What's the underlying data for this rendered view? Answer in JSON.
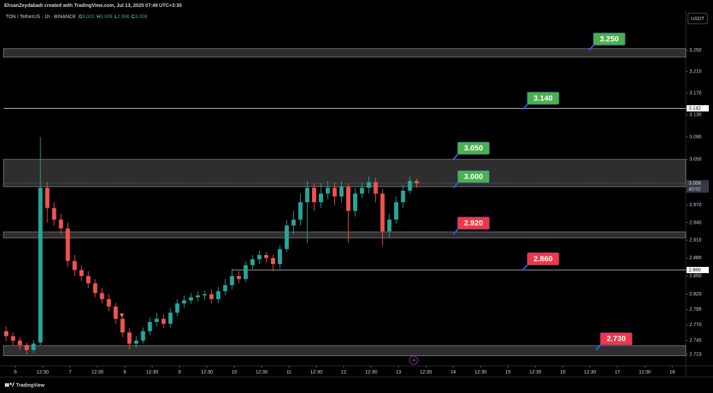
{
  "header": {
    "credit": "EhsanZeydabadi created with TradingView.com, Jul 13, 2025 07:49 UTC+3:30",
    "footer": "TradingView"
  },
  "chart_data": {
    "type": "candlestick",
    "symbol": "TON / TetherUS · 1h · BINANCE",
    "currency": "USDT",
    "ohlc_legend": {
      "labels": [
        "O",
        "H",
        "L",
        "C"
      ],
      "values": [
        3.002,
        3.009,
        2.996,
        3.008
      ]
    },
    "up_color": "#26a69a",
    "down_color": "#ef5350",
    "log_scale": true,
    "grid": false,
    "x": [
      -4,
      -1,
      2,
      5,
      8,
      11,
      14,
      17,
      20,
      23,
      26,
      29,
      32,
      35,
      38,
      41,
      44,
      47,
      50,
      53,
      56,
      59,
      62,
      65,
      68,
      71,
      74,
      77,
      80,
      83,
      86,
      89,
      92,
      95,
      98,
      101,
      104,
      107,
      110,
      113,
      116,
      119,
      122,
      125,
      128,
      131,
      134,
      137,
      140,
      143,
      146,
      149,
      152,
      155,
      158,
      161,
      164,
      167,
      170,
      173,
      176
    ],
    "open": [
      2.76,
      2.752,
      2.745,
      2.738,
      2.73,
      2.742,
      3.0,
      2.965,
      2.945,
      2.93,
      2.875,
      2.86,
      2.85,
      2.838,
      2.822,
      2.812,
      2.8,
      2.78,
      2.758,
      2.74,
      2.745,
      2.76,
      2.775,
      2.78,
      2.772,
      2.79,
      2.805,
      2.81,
      2.815,
      2.818,
      2.82,
      2.812,
      2.825,
      2.835,
      2.85,
      2.845,
      2.868,
      2.878,
      2.885,
      2.88,
      2.87,
      2.895,
      2.935,
      2.945,
      2.975,
      3.0,
      2.975,
      2.99,
      3.0,
      2.985,
      3.002,
      2.96,
      2.99,
      3.0,
      3.01,
      2.99,
      2.925,
      2.945,
      2.975,
      2.995,
      3.012
    ],
    "high": [
      2.768,
      2.758,
      2.75,
      2.742,
      2.746,
      3.09,
      3.01,
      2.975,
      2.955,
      2.94,
      2.885,
      2.868,
      2.858,
      2.845,
      2.83,
      2.82,
      2.806,
      2.786,
      2.765,
      2.752,
      2.766,
      2.782,
      2.79,
      2.788,
      2.798,
      2.812,
      2.818,
      2.822,
      2.825,
      2.826,
      2.828,
      2.832,
      2.845,
      2.862,
      2.858,
      2.875,
      2.885,
      2.892,
      2.89,
      2.886,
      2.902,
      2.945,
      2.96,
      2.99,
      3.012,
      3.008,
      3.008,
      3.012,
      3.01,
      3.012,
      3.008,
      3.0,
      3.01,
      3.02,
      3.018,
      2.998,
      2.955,
      2.985,
      3.005,
      3.02,
      3.016
    ],
    "low": [
      2.744,
      2.738,
      2.731,
      2.723,
      2.725,
      2.738,
      2.94,
      2.935,
      2.92,
      2.865,
      2.85,
      2.842,
      2.83,
      2.815,
      2.805,
      2.792,
      2.772,
      2.75,
      2.731,
      2.733,
      2.74,
      2.754,
      2.768,
      2.765,
      2.766,
      2.784,
      2.798,
      2.804,
      2.808,
      2.81,
      2.805,
      2.806,
      2.818,
      2.828,
      2.838,
      2.84,
      2.862,
      2.87,
      2.872,
      2.858,
      2.862,
      2.89,
      2.92,
      2.935,
      2.905,
      2.96,
      2.965,
      2.98,
      2.97,
      2.975,
      2.905,
      2.95,
      2.982,
      2.99,
      2.975,
      2.9,
      2.915,
      2.938,
      2.965,
      2.99,
      3.0
    ],
    "close": [
      2.752,
      2.745,
      2.738,
      2.73,
      2.74,
      3.0,
      2.965,
      2.945,
      2.93,
      2.875,
      2.86,
      2.85,
      2.838,
      2.822,
      2.812,
      2.8,
      2.78,
      2.758,
      2.74,
      2.745,
      2.76,
      2.775,
      2.78,
      2.772,
      2.79,
      2.805,
      2.81,
      2.815,
      2.818,
      2.82,
      2.812,
      2.825,
      2.835,
      2.85,
      2.845,
      2.868,
      2.878,
      2.885,
      2.88,
      2.87,
      2.895,
      2.935,
      2.945,
      2.975,
      3.0,
      2.975,
      2.99,
      3.0,
      2.985,
      3.002,
      2.96,
      2.99,
      3.0,
      3.01,
      2.99,
      2.925,
      2.945,
      2.975,
      2.995,
      3.012,
      3.008
    ],
    "xlim": [
      -5.2,
      294
    ],
    "ylim": [
      2.705,
      3.326
    ],
    "yticks": [
      {
        "value": 3.25,
        "label": "3.250"
      },
      {
        "value": 3.21,
        "label": "3.210"
      },
      {
        "value": 3.17,
        "label": "3.170"
      },
      {
        "value": 3.13,
        "label": "3.130"
      },
      {
        "value": 3.09,
        "label": "3.090"
      },
      {
        "value": 3.05,
        "label": "3.050"
      },
      {
        "value": 2.97,
        "label": "2.970"
      },
      {
        "value": 2.94,
        "label": "2.940"
      },
      {
        "value": 2.91,
        "label": "2.910"
      },
      {
        "value": 2.88,
        "label": "2.880"
      },
      {
        "value": 2.85,
        "label": "2.850"
      },
      {
        "value": 2.82,
        "label": "2.820"
      },
      {
        "value": 2.795,
        "label": "2.795"
      },
      {
        "value": 2.77,
        "label": "2.770"
      },
      {
        "value": 2.745,
        "label": "2.745"
      },
      {
        "value": 2.723,
        "label": "2.723"
      }
    ],
    "xticks": [
      {
        "value": 0,
        "label": "6"
      },
      {
        "value": 12,
        "label": "12:30"
      },
      {
        "value": 24,
        "label": "7"
      },
      {
        "value": 36,
        "label": "12:30"
      },
      {
        "value": 48,
        "label": "8"
      },
      {
        "value": 60,
        "label": "12:30"
      },
      {
        "value": 72,
        "label": "9"
      },
      {
        "value": 84,
        "label": "12:30"
      },
      {
        "value": 96,
        "label": "10"
      },
      {
        "value": 108,
        "label": "12:30"
      },
      {
        "value": 120,
        "label": "11"
      },
      {
        "value": 132,
        "label": "12:30"
      },
      {
        "value": 144,
        "label": "12"
      },
      {
        "value": 156,
        "label": "12:30"
      },
      {
        "value": 168,
        "label": "13"
      },
      {
        "value": 180,
        "label": "12:30"
      },
      {
        "value": 192,
        "label": "14"
      },
      {
        "value": 204,
        "label": "12:30"
      },
      {
        "value": 216,
        "label": "15"
      },
      {
        "value": 228,
        "label": "12:30"
      },
      {
        "value": 240,
        "label": "16"
      },
      {
        "value": 252,
        "label": "12:30"
      },
      {
        "value": 264,
        "label": "17"
      },
      {
        "value": 276,
        "label": "12:30"
      },
      {
        "value": 288,
        "label": "18"
      }
    ],
    "zones": [
      {
        "range": [
          3.237,
          3.253
        ]
      },
      {
        "range": [
          3.002,
          3.05
        ]
      },
      {
        "range": [
          2.914,
          2.924
        ]
      },
      {
        "range": [
          2.721,
          2.737
        ]
      }
    ],
    "price_tags": [
      {
        "value": 3.142,
        "label": "3.142",
        "line": "solid"
      },
      {
        "value": 3.008,
        "label": "3.008",
        "countdown": "40:02",
        "line": "dotted"
      },
      {
        "value": 2.86,
        "label": "2.860",
        "line": "solid",
        "from": 95
      }
    ],
    "callouts": [
      {
        "value": 3.25,
        "label": "3.250",
        "color": "#4caf50"
      },
      {
        "value": 3.14,
        "label": "3.140",
        "color": "#4caf50"
      },
      {
        "value": 3.05,
        "label": "3.050",
        "color": "#4caf50"
      },
      {
        "value": 3.0,
        "label": "3.000",
        "color": "#4caf50"
      },
      {
        "value": 2.92,
        "label": "2.920",
        "color": "#f23645"
      },
      {
        "value": 2.86,
        "label": "2.860",
        "color": "#f23645"
      },
      {
        "value": 2.73,
        "label": "2.730",
        "color": "#f23645"
      }
    ]
  }
}
